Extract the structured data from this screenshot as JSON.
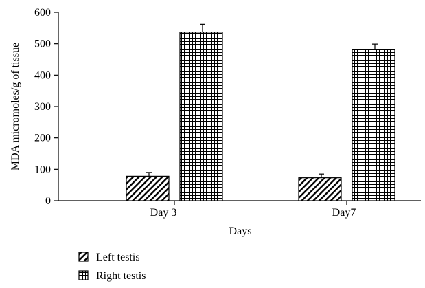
{
  "chart_data": {
    "type": "bar",
    "categories": [
      "Day 3",
      "Day7"
    ],
    "series": [
      {
        "name": "Left testis",
        "values": [
          78,
          73
        ],
        "errors": [
          12,
          12
        ],
        "pattern": "diagonal-hatch"
      },
      {
        "name": "Right testis",
        "values": [
          537,
          481
        ],
        "errors": [
          25,
          18
        ],
        "pattern": "grid-hatch"
      }
    ],
    "xlabel": "Days",
    "ylabel": "MDA micromoles/g of tissue",
    "ylim": [
      0,
      600
    ],
    "yticks": [
      0,
      100,
      200,
      300,
      400,
      500,
      600
    ],
    "grid": false,
    "legend_position": "bottom-left"
  }
}
